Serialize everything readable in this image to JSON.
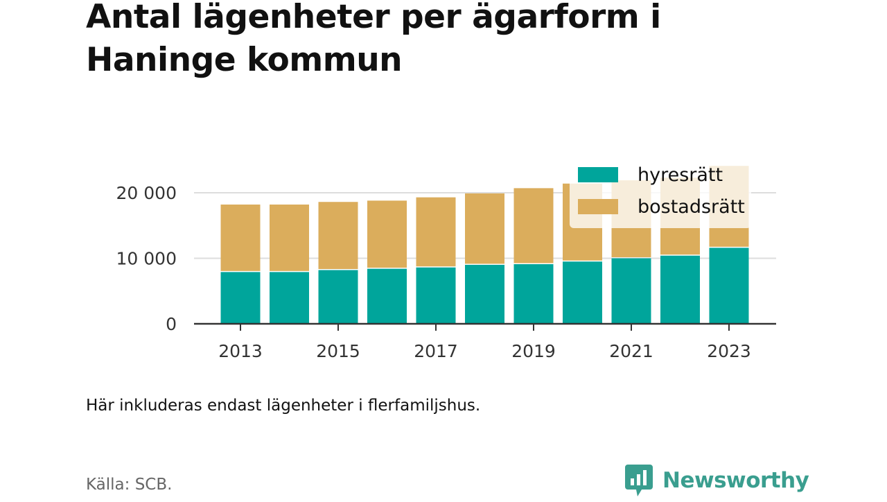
{
  "title": "Antal lägenheter per ägarform i Haninge kommun",
  "note": "Här inkluderas endast lägenheter i flerfamiljshus.",
  "source": "Källa: SCB.",
  "brand": {
    "name": "Newsworthy",
    "icon": "newsworthy-logo-icon",
    "color": "#3a9e8f"
  },
  "chart_data": {
    "type": "bar",
    "stacked": true,
    "x": [
      2013,
      2014,
      2015,
      2016,
      2017,
      2018,
      2019,
      2020,
      2021,
      2022,
      2023
    ],
    "x_tick_labels": [
      "2013",
      "2015",
      "2017",
      "2019",
      "2021",
      "2023"
    ],
    "series": [
      {
        "name": "hyresrätt",
        "color": "#00a59b",
        "values": [
          7900,
          7900,
          8200,
          8400,
          8600,
          9000,
          9100,
          9500,
          10000,
          10400,
          11600
        ]
      },
      {
        "name": "bostadsrätt",
        "color": "#dbad5c",
        "values": [
          10300,
          10300,
          10400,
          10400,
          10700,
          10900,
          11600,
          11900,
          11900,
          11900,
          12500
        ]
      }
    ],
    "y_ticks": [
      0,
      10000,
      20000
    ],
    "y_tick_labels": [
      "0",
      "10 000",
      "20 000"
    ],
    "ylim": [
      0,
      26000
    ],
    "grid": true,
    "legend_position": "top-right"
  }
}
